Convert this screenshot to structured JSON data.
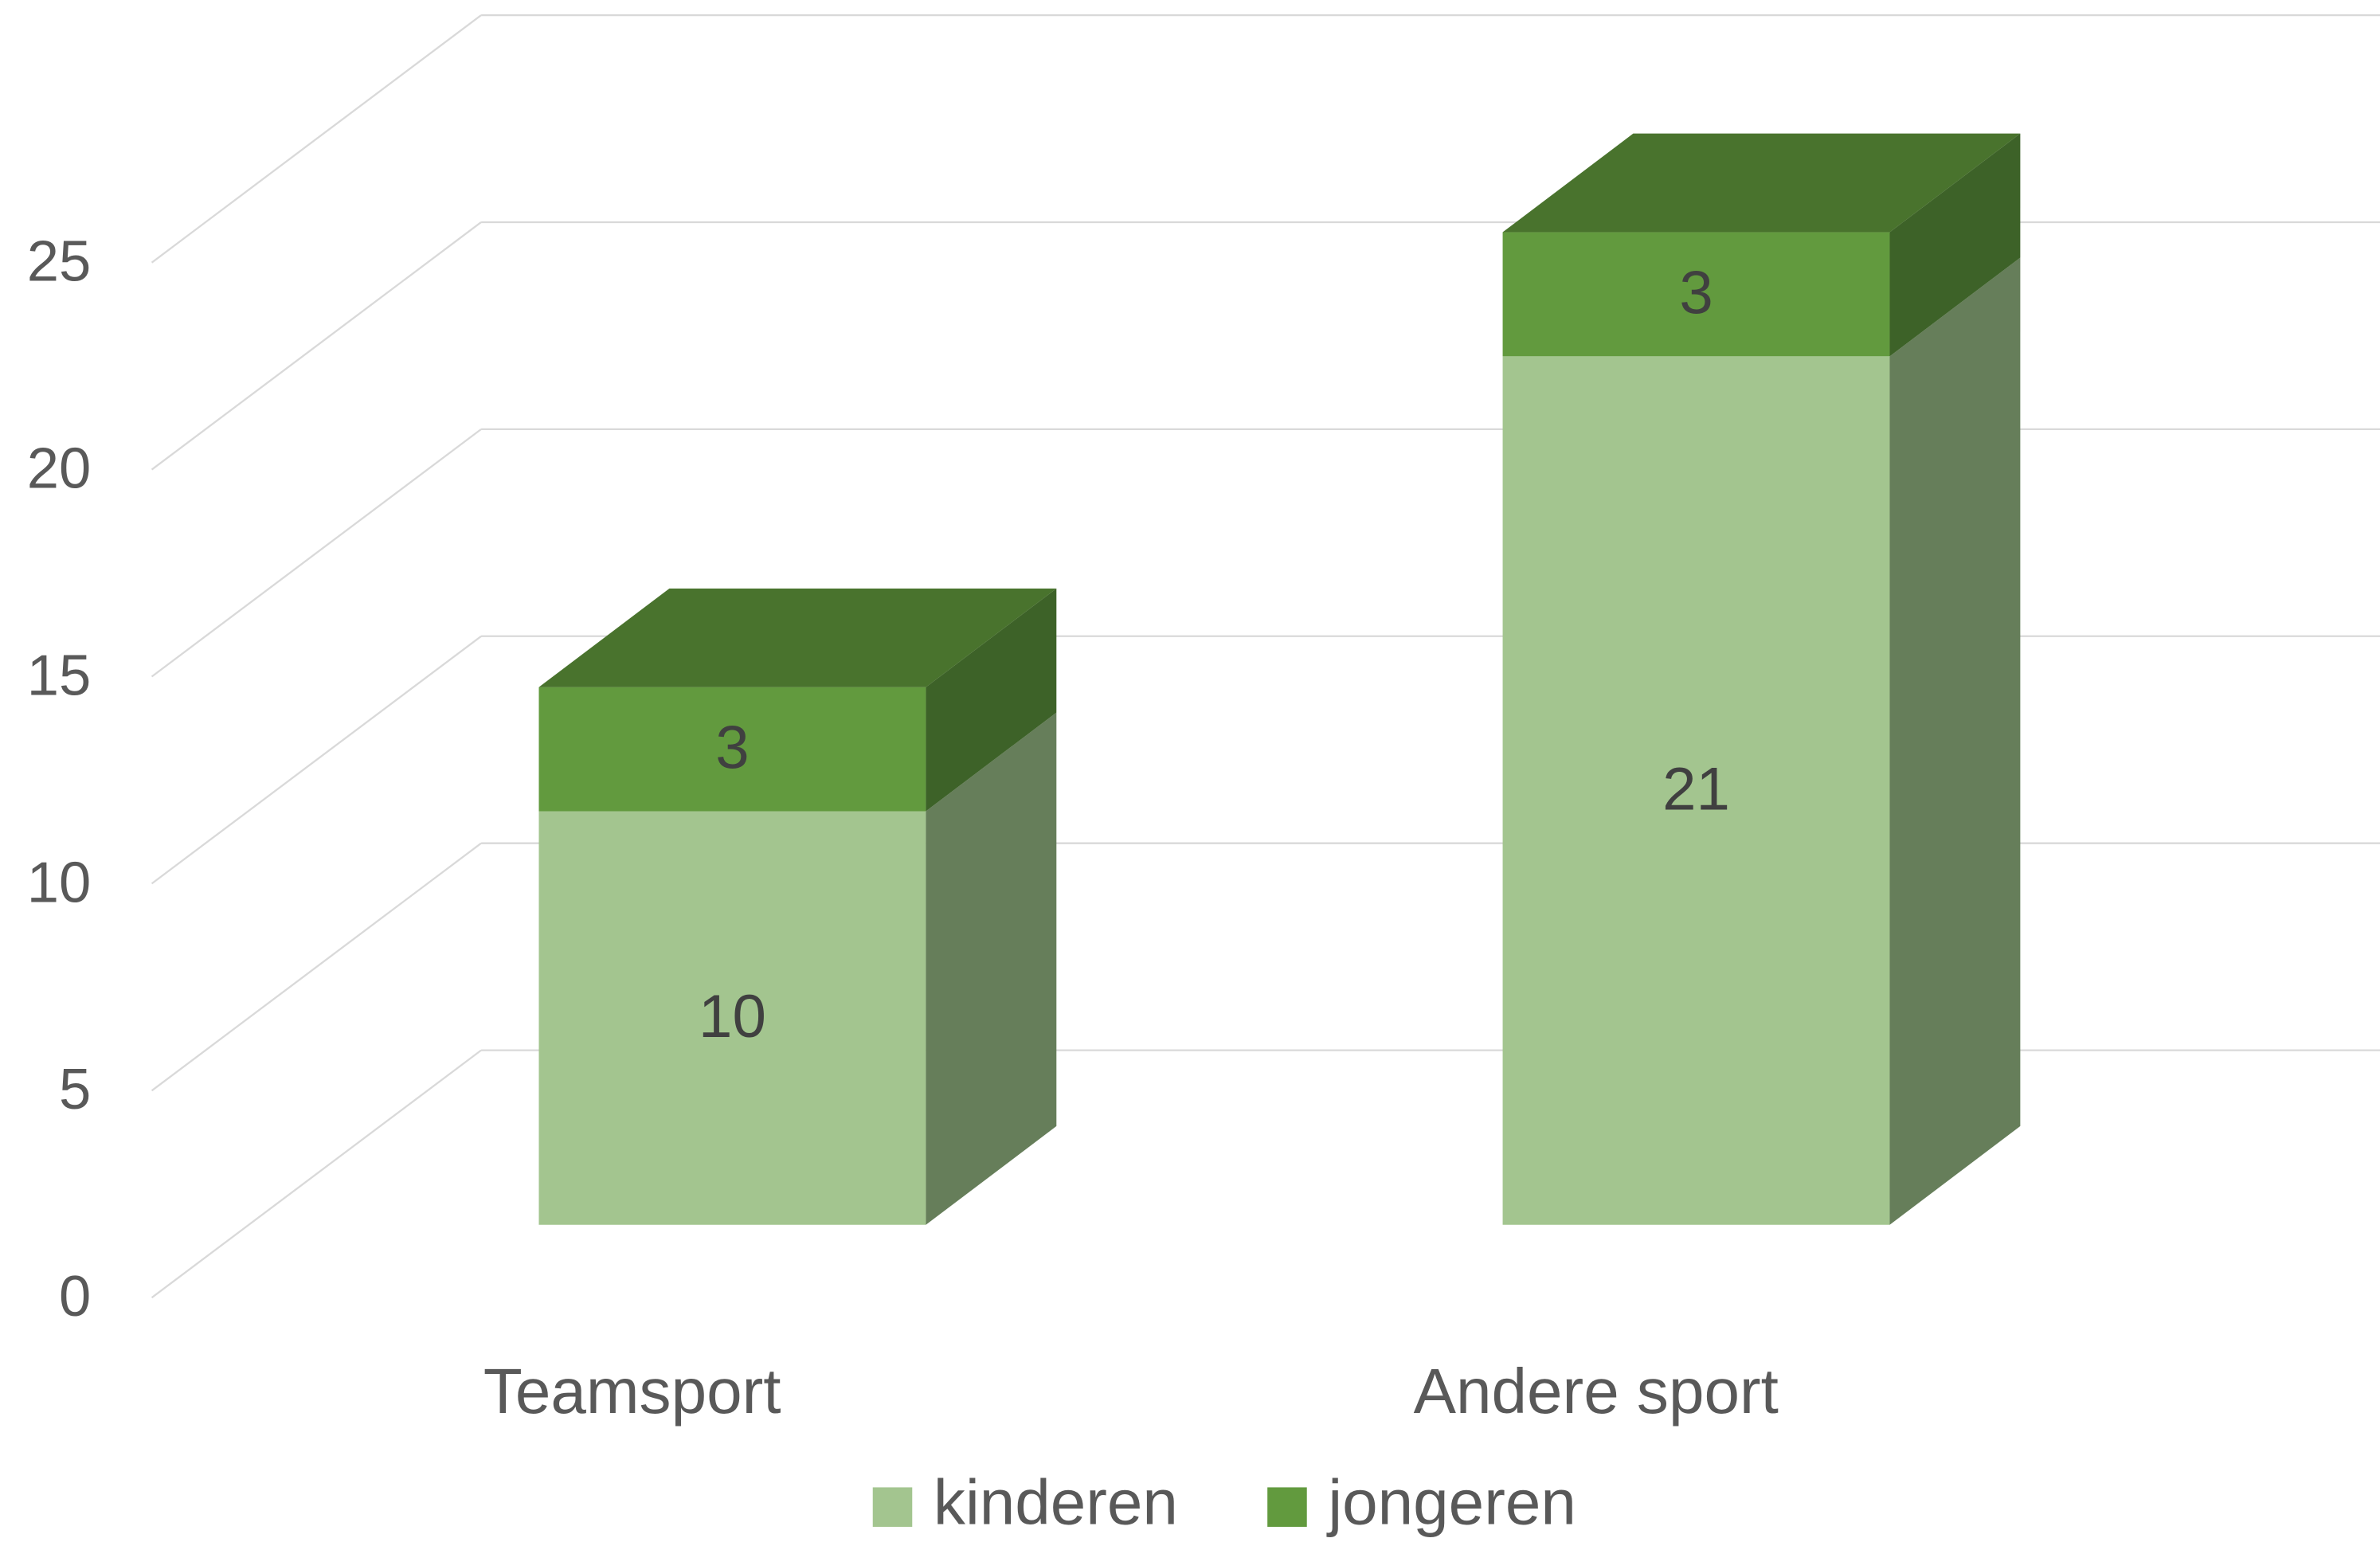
{
  "chart_data": {
    "type": "bar3d_stacked",
    "categories": [
      "Teamsport",
      "Andere sport"
    ],
    "series": [
      {
        "name": "kinderen",
        "color": "#a3c58f",
        "side_color": "#667e5a",
        "values": [
          10,
          21
        ]
      },
      {
        "name": "jongeren",
        "color": "#629a3e",
        "side_color": "#3d6228",
        "top_color": "#49732d",
        "values": [
          3,
          3
        ]
      }
    ],
    "ylim": [
      0,
      25
    ],
    "yticks": [
      0,
      5,
      10,
      15,
      20,
      25
    ],
    "grid": true,
    "legend": "bottom"
  }
}
